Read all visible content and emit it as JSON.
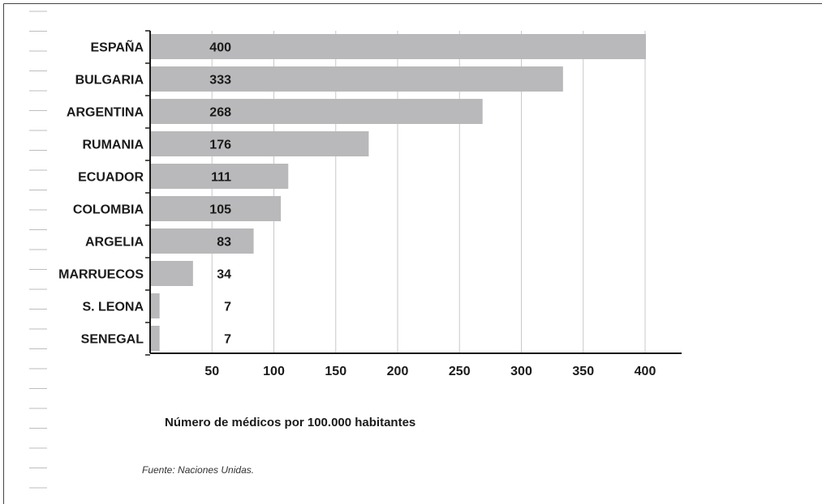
{
  "chart_data": {
    "type": "bar",
    "orientation": "horizontal",
    "categories": [
      "ESPAÑA",
      "BULGARIA",
      "ARGENTINA",
      "RUMANIA",
      "ECUADOR",
      "COLOMBIA",
      "ARGELIA",
      "MARRUECOS",
      "S. LEONA",
      "SENEGAL"
    ],
    "values": [
      400,
      333,
      268,
      176,
      111,
      105,
      83,
      34,
      7,
      7
    ],
    "value_labels": [
      "400",
      "333",
      "268",
      "176",
      "111",
      "105",
      "83",
      "34",
      "7",
      "7"
    ],
    "xticks": [
      50,
      100,
      150,
      200,
      250,
      300,
      350,
      400
    ],
    "xlim": [
      0,
      425
    ],
    "xlabel": "Número de médicos por 100.000 habitantes",
    "title": "",
    "grid": "vertical",
    "bar_color": "#b9b9bb",
    "grid_color": "#c8c8c8",
    "source": "Fuente: Naciones Unidas."
  }
}
